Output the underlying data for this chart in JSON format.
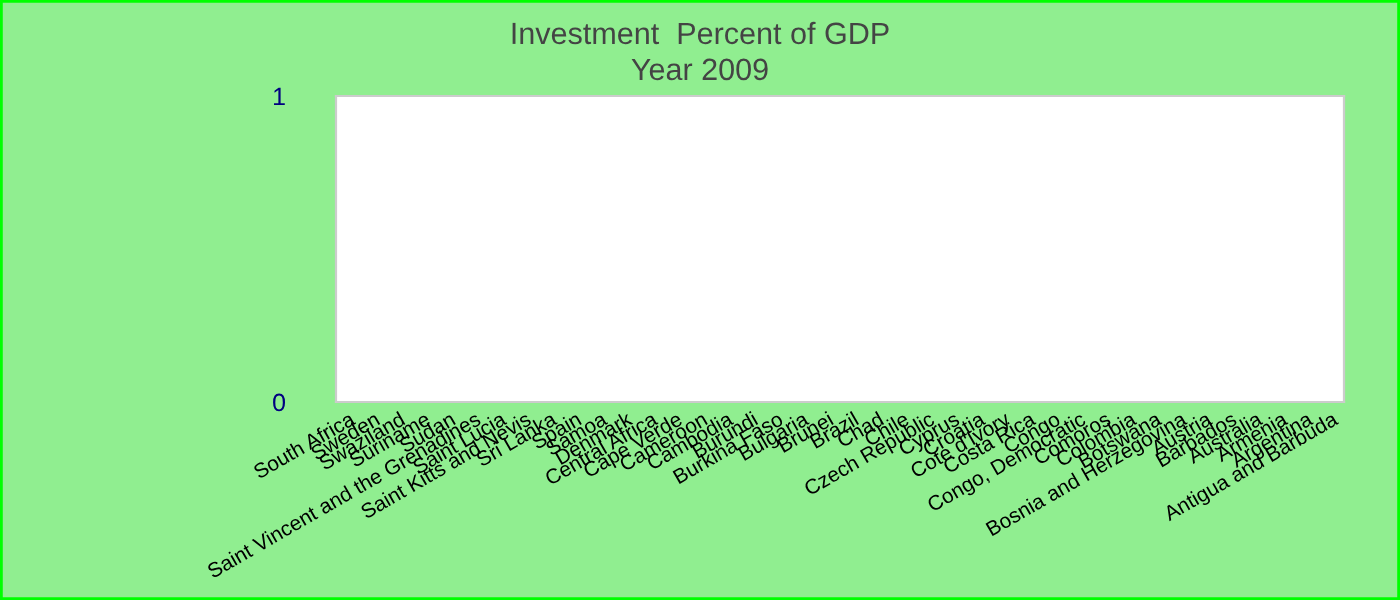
{
  "chart_data": {
    "type": "bar",
    "title": "Investment  Percent of GDP",
    "subtitle": "Year 2009",
    "categories": [
      "South Africa",
      "Sweden",
      "Swaziland",
      "Suriname",
      "Sudan",
      "Saint Vincent and the Grenadines",
      "Saint Lucia",
      "Saint Kitts and Nevis",
      "Sri Lanka",
      "Spain",
      "Samoa",
      "Denmark",
      "Central Africa",
      "Cape Verde",
      "Cameroon",
      "Cambodia",
      "Burundi",
      "Burkina Faso",
      "Bulgaria",
      "Brunei",
      "Brazil",
      "Chad",
      "Chile",
      "Czech Republic",
      "Cyprus",
      "Croatia",
      "Cote d'Ivory",
      "Costa Rica",
      "Congo",
      "Congo, Democratic",
      "Comoros",
      "Colombia",
      "Botswana",
      "Bosnia and Herzegovina",
      "Austria",
      "Barbados",
      "Australia",
      "Armenia",
      "Argentina",
      "Antigua and Barbuda"
    ],
    "values": [
      null,
      null,
      null,
      null,
      null,
      null,
      null,
      null,
      null,
      null,
      null,
      null,
      null,
      null,
      null,
      null,
      null,
      null,
      null,
      null,
      null,
      null,
      null,
      null,
      null,
      null,
      null,
      null,
      null,
      null,
      null,
      null,
      null,
      null,
      null,
      null,
      null,
      null,
      null,
      null
    ],
    "ylim": [
      0,
      1
    ],
    "yticks": [
      0,
      1
    ]
  }
}
